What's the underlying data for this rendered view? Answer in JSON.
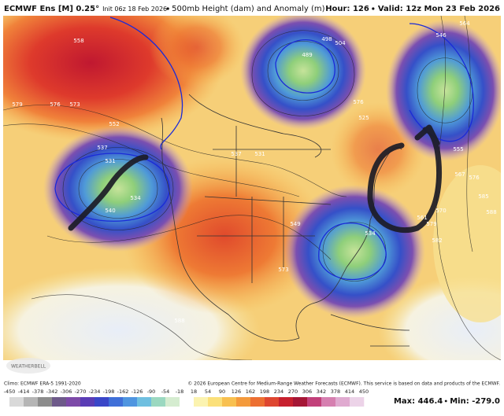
{
  "header": {
    "model": "ECMWF Ens [M] 0.25°",
    "init": "Init 06z 18 Feb 2026",
    "field": "500mb Height (dam) and Anomaly (m)",
    "hour": "Hour: 126",
    "valid": "Valid: 12z Mon 23 Feb 2026"
  },
  "map": {
    "contour_labels": [
      558,
      579,
      576,
      573,
      552,
      537,
      531,
      534,
      540,
      537,
      531,
      489,
      498,
      504,
      525,
      576,
      534,
      561,
      570,
      579,
      582,
      588,
      585,
      567,
      576,
      555,
      546,
      564,
      549,
      573,
      588
    ]
  },
  "footer": {
    "climo": "Climo: ECMWF ERA-5 1991-2020",
    "copyright": "© 2026 European Centre for Medium-Range Weather Forecasts (ECMWF). This service is based on data and products of the ECMWF.",
    "logo": "WEATHERBELL",
    "max": "Max: 446.4",
    "min": "Min: -279.0"
  },
  "colorbar": {
    "ticks": [
      -450,
      -414,
      -378,
      -342,
      -306,
      -270,
      -234,
      -198,
      -162,
      -126,
      -90,
      -54,
      -18,
      18,
      54,
      90,
      126,
      162,
      198,
      234,
      270,
      306,
      342,
      378,
      414,
      450
    ],
    "colors": [
      "#d9d9d9",
      "#b5b5b5",
      "#8c8c8c",
      "#6e5a8a",
      "#7d4aa8",
      "#5a3cb5",
      "#3a46c8",
      "#3f6fd8",
      "#4f95e0",
      "#6fbfe0",
      "#9bd8c0",
      "#d5ecd0",
      "#ffffff",
      "#fbf3b0",
      "#fbe07a",
      "#f8c050",
      "#f49a3c",
      "#ec6f32",
      "#de4630",
      "#c7202e",
      "#a51635",
      "#c2407a",
      "#d67fb0",
      "#e0aad0",
      "#ecd3e8"
    ]
  }
}
